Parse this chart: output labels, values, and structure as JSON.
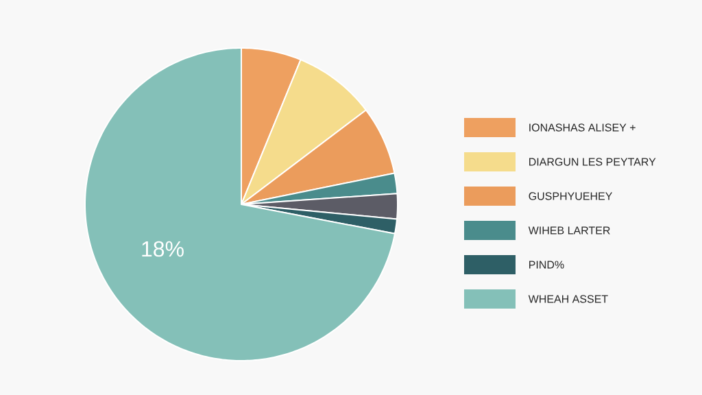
{
  "chart_data": {
    "type": "pie",
    "categories": [
      "IONASHAS ALISEY +",
      "DIARGUN LES PEYTARY",
      "GUSPHYUEHEY",
      "WIHEB LARTER",
      null,
      "PIND%",
      "WHEAH ASSET"
    ],
    "values": [
      6.2,
      8.5,
      7.1,
      2.1,
      2.6,
      1.5,
      72
    ],
    "colors": [
      "#eea060",
      "#f5dc8c",
      "#eb9c5c",
      "#4a8c8c",
      "#5c5c66",
      "#2e5f66",
      "#84c0b8"
    ],
    "annotations": [
      "18%"
    ],
    "legend": "right"
  }
}
